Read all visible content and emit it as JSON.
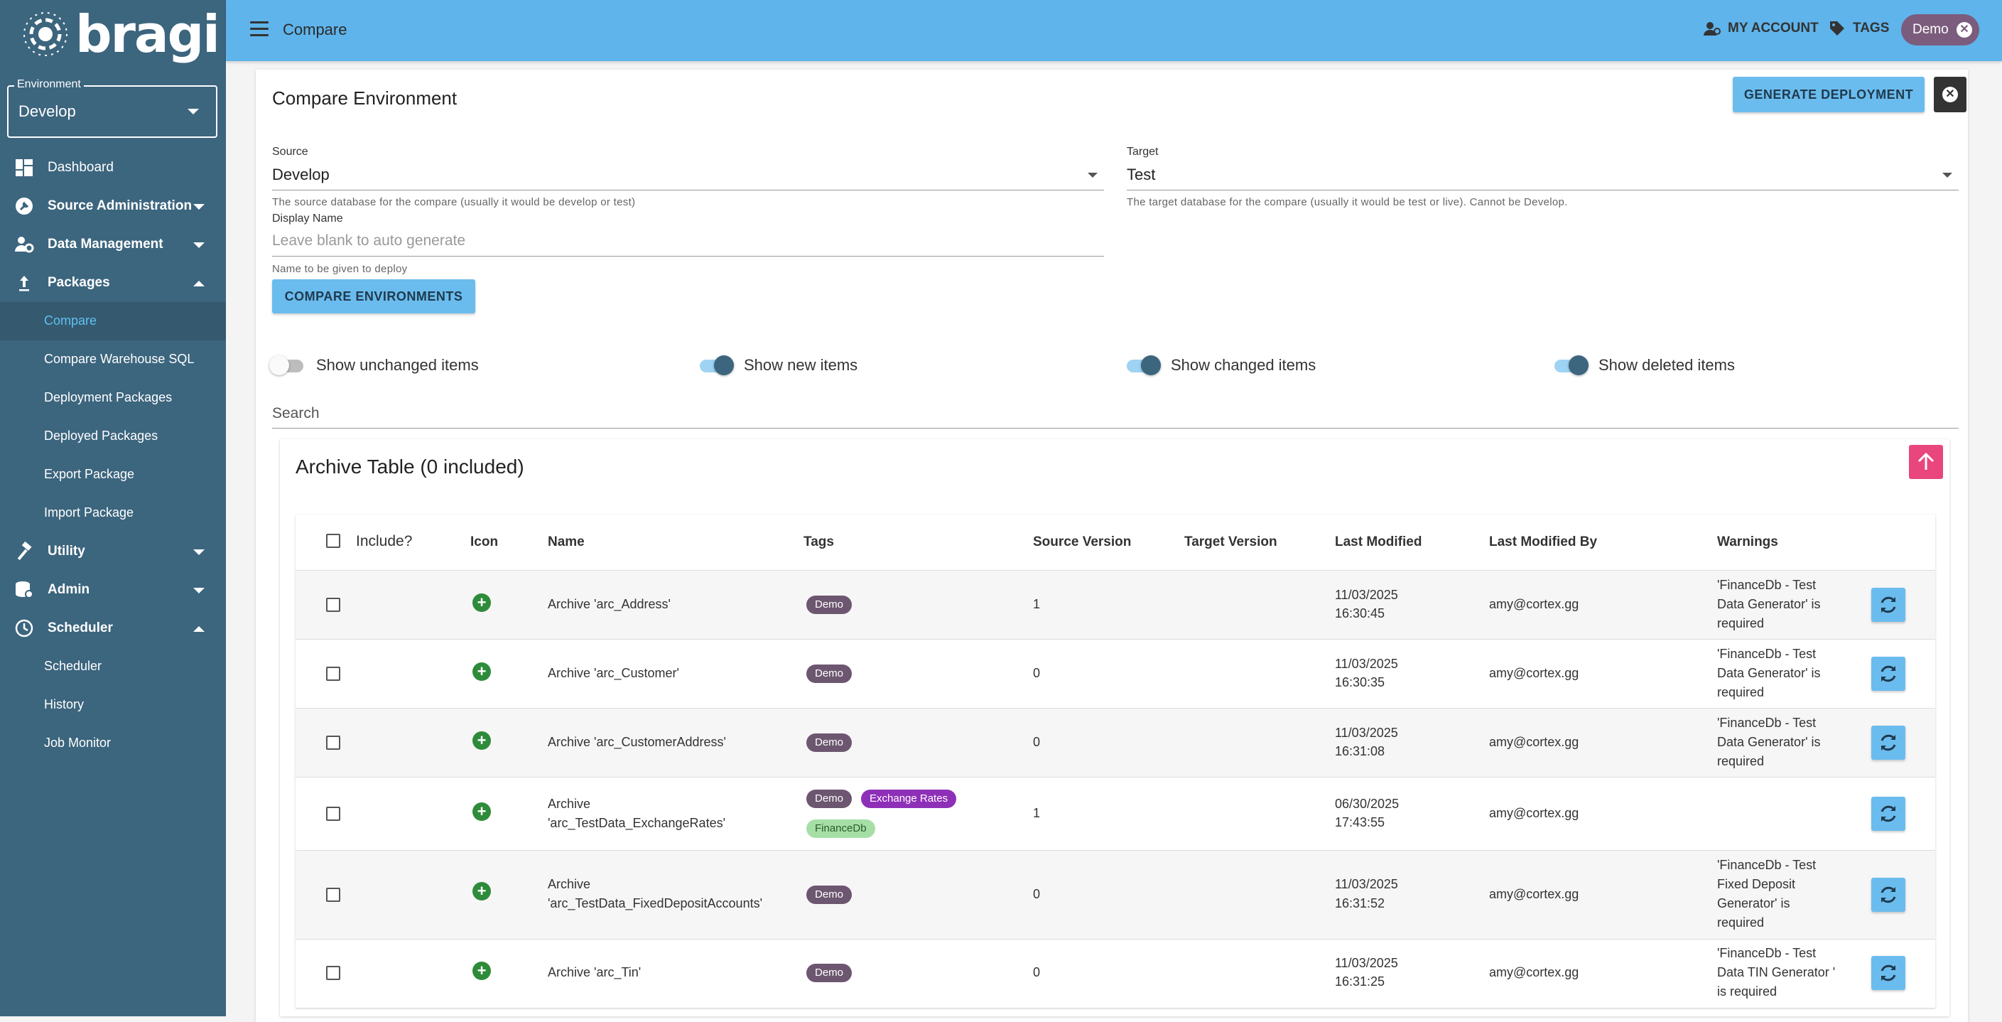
{
  "app": {
    "logo_text": "bragi"
  },
  "environment": {
    "label": "Environment",
    "value": "Develop"
  },
  "sidebar": {
    "items": [
      {
        "label": "Dashboard",
        "icon": "dashboard-icon"
      },
      {
        "label": "Source Administration",
        "icon": "wrench-icon"
      },
      {
        "label": "Data Management",
        "icon": "users-gear-icon"
      },
      {
        "label": "Packages",
        "icon": "upload-icon"
      },
      {
        "label": "Utility",
        "icon": "hammer-icon"
      },
      {
        "label": "Admin",
        "icon": "admin-database-icon"
      },
      {
        "label": "Scheduler",
        "icon": "clock-icon"
      }
    ],
    "packages_sub": [
      "Compare",
      "Compare Warehouse SQL",
      "Deployment Packages",
      "Deployed Packages",
      "Export Package",
      "Import Package"
    ],
    "scheduler_sub": [
      "Scheduler",
      "History",
      "Job Monitor"
    ]
  },
  "topbar": {
    "title": "Compare",
    "my_account": "MY ACCOUNT",
    "tags": "TAGS",
    "demo_chip": "Demo"
  },
  "page": {
    "title": "Compare Environment",
    "generate_button": "GENERATE DEPLOYMENT",
    "source": {
      "label": "Source",
      "value": "Develop",
      "helper": "The source database for the compare (usually it would be develop or test)"
    },
    "target": {
      "label": "Target",
      "value": "Test",
      "helper": "The target database for the compare (usually it would be test or live). Cannot be Develop."
    },
    "display_name": {
      "label": "Display Name",
      "placeholder": "Leave blank to auto generate",
      "helper": "Name to be given to deploy"
    },
    "compare_button": "COMPARE ENVIRONMENTS",
    "toggles": [
      {
        "label": "Show unchanged items",
        "on": false
      },
      {
        "label": "Show new items",
        "on": true
      },
      {
        "label": "Show changed items",
        "on": true
      },
      {
        "label": "Show deleted items",
        "on": true
      }
    ],
    "search_label": "Search"
  },
  "section": {
    "title": "Archive Table (0 included)",
    "columns": [
      "Include?",
      "Icon",
      "Name",
      "Tags",
      "Source Version",
      "Target Version",
      "Last Modified",
      "Last Modified By",
      "Warnings"
    ],
    "rows": [
      {
        "name": "Archive 'arc_Address'",
        "tags": [
          "Demo"
        ],
        "source_version": "1",
        "target_version": "",
        "modified_date": "11/03/2025",
        "modified_time": "16:30:45",
        "modified_by": "amy@cortex.gg",
        "warning": [
          "'FinanceDb - Test",
          "Data Generator' is",
          "required"
        ]
      },
      {
        "name": "Archive 'arc_Customer'",
        "tags": [
          "Demo"
        ],
        "source_version": "0",
        "target_version": "",
        "modified_date": "11/03/2025",
        "modified_time": "16:30:35",
        "modified_by": "amy@cortex.gg",
        "warning": [
          "'FinanceDb - Test",
          "Data Generator' is",
          "required"
        ]
      },
      {
        "name": "Archive 'arc_CustomerAddress'",
        "tags": [
          "Demo"
        ],
        "source_version": "0",
        "target_version": "",
        "modified_date": "11/03/2025",
        "modified_time": "16:31:08",
        "modified_by": "amy@cortex.gg",
        "warning": [
          "'FinanceDb - Test",
          "Data Generator' is",
          "required"
        ]
      },
      {
        "name": [
          "Archive",
          "'arc_TestData_ExchangeRates'"
        ],
        "tags": [
          "Demo",
          "Exchange Rates",
          "FinanceDb"
        ],
        "source_version": "1",
        "target_version": "",
        "modified_date": "06/30/2025",
        "modified_time": "17:43:55",
        "modified_by": "amy@cortex.gg",
        "warning": []
      },
      {
        "name": [
          "Archive",
          "'arc_TestData_FixedDepositAccounts'"
        ],
        "tags": [
          "Demo"
        ],
        "source_version": "0",
        "target_version": "",
        "modified_date": "11/03/2025",
        "modified_time": "16:31:52",
        "modified_by": "amy@cortex.gg",
        "warning": [
          "'FinanceDb - Test",
          "Fixed Deposit",
          "Generator' is",
          "required"
        ]
      },
      {
        "name": "Archive 'arc_Tin'",
        "tags": [
          "Demo"
        ],
        "source_version": "0",
        "target_version": "",
        "modified_date": "11/03/2025",
        "modified_time": "16:31:25",
        "modified_by": "amy@cortex.gg",
        "warning": [
          "'FinanceDb - Test",
          "Data TIN Generator '",
          "is required"
        ]
      }
    ]
  },
  "colors": {
    "sidebar": "#3c657e",
    "topbar": "#5fb4eb",
    "accent": "#6bbcee",
    "active_link": "#5ec2f2",
    "up_button": "#e8467c"
  }
}
